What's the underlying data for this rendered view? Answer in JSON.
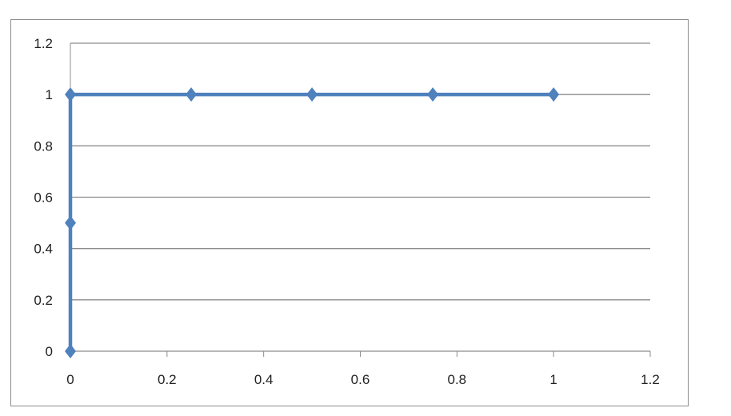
{
  "chart_data": {
    "type": "scatter",
    "title": "",
    "xlabel": "",
    "ylabel": "",
    "xlim": [
      0,
      1.2
    ],
    "ylim": [
      0,
      1.2
    ],
    "x_ticks": [
      "0",
      "0.2",
      "0.4",
      "0.6",
      "0.8",
      "1",
      "1.2"
    ],
    "y_ticks": [
      "0",
      "0.2",
      "0.4",
      "0.6",
      "0.8",
      "1",
      "1.2"
    ],
    "grid": "horizontal",
    "legend": "none",
    "series": [
      {
        "color": "#4f81bd",
        "marker": "diamond",
        "line": true,
        "points": [
          {
            "x": 0,
            "y": 0
          },
          {
            "x": 0,
            "y": 0.5
          },
          {
            "x": 0,
            "y": 1
          },
          {
            "x": 0.25,
            "y": 1
          },
          {
            "x": 0.5,
            "y": 1
          },
          {
            "x": 0.75,
            "y": 1
          },
          {
            "x": 1,
            "y": 1
          }
        ]
      }
    ]
  }
}
